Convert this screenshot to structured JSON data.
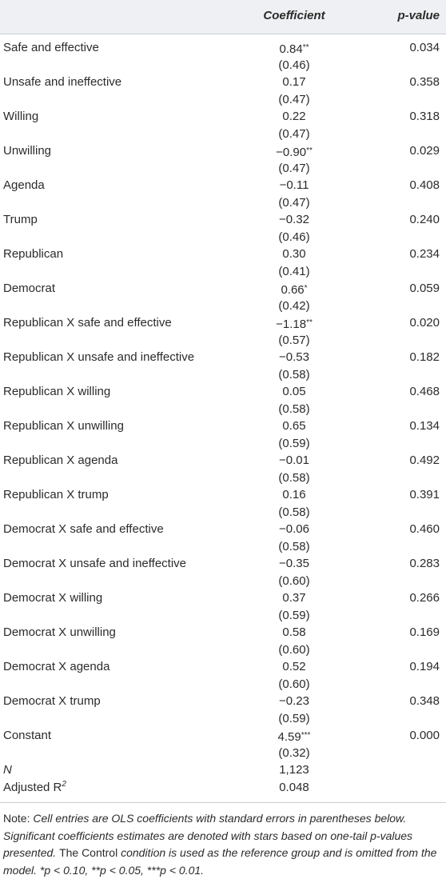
{
  "table": {
    "columns": [
      "Coefficient",
      "p-value"
    ],
    "rows": [
      {
        "label": "Safe and effective",
        "coef": "0.84",
        "stars": "**",
        "se": "(0.46)",
        "p": "0.034"
      },
      {
        "label": "Unsafe and ineffective",
        "coef": "0.17",
        "se": "(0.47)",
        "p": "0.358"
      },
      {
        "label": "Willing",
        "coef": "0.22",
        "se": "(0.47)",
        "p": "0.318"
      },
      {
        "label": "Unwilling",
        "coef": "−0.90",
        "stars": "**",
        "se": "(0.47)",
        "p": "0.029"
      },
      {
        "label": "Agenda",
        "coef": "−0.11",
        "se": "(0.47)",
        "p": "0.408"
      },
      {
        "label": "Trump",
        "coef": "−0.32",
        "se": "(0.46)",
        "p": "0.240"
      },
      {
        "label": "Republican",
        "coef": "0.30",
        "se": "(0.41)",
        "p": "0.234"
      },
      {
        "label": "Democrat",
        "coef": "0.66",
        "stars": "*",
        "se": "(0.42)",
        "p": "0.059"
      },
      {
        "label": "Republican X safe and effective",
        "coef": "−1.18",
        "stars": "**",
        "se": "(0.57)",
        "p": "0.020"
      },
      {
        "label": "Republican X unsafe and ineffective",
        "coef": "−0.53",
        "se": "(0.58)",
        "p": "0.182"
      },
      {
        "label": "Republican X willing",
        "coef": "0.05",
        "se": "(0.58)",
        "p": "0.468"
      },
      {
        "label": "Republican X unwilling",
        "coef": "0.65",
        "se": "(0.59)",
        "p": "0.134"
      },
      {
        "label": "Republican X agenda",
        "coef": "−0.01",
        "se": "(0.58)",
        "p": "0.492"
      },
      {
        "label": "Republican X trump",
        "coef": "0.16",
        "se": "(0.58)",
        "p": "0.391"
      },
      {
        "label": "Democrat X safe and effective",
        "coef": "−0.06",
        "se": "(0.58)",
        "p": "0.460"
      },
      {
        "label": "Democrat X unsafe and ineffective",
        "coef": "−0.35",
        "se": "(0.60)",
        "p": "0.283"
      },
      {
        "label": "Democrat X willing",
        "coef": "0.37",
        "se": "(0.59)",
        "p": "0.266"
      },
      {
        "label": "Democrat X unwilling",
        "coef": "0.58",
        "se": "(0.60)",
        "p": "0.169"
      },
      {
        "label": "Democrat X agenda",
        "coef": "0.52",
        "se": "(0.60)",
        "p": "0.194"
      },
      {
        "label": "Democrat X trump",
        "coef": "−0.23",
        "se": "(0.59)",
        "p": "0.348"
      },
      {
        "label": "Constant",
        "coef": "4.59",
        "stars": "***",
        "se": "(0.32)",
        "p": "0.000"
      },
      {
        "label": "N",
        "coef": "1,123"
      },
      {
        "label": "Adjusted R",
        "label_sup": "2",
        "coef": "0.048"
      }
    ],
    "note": [
      {
        "text": "Note: ",
        "italic": false
      },
      {
        "text": "Cell entries are OLS coefficients with standard errors in parentheses below. Significant coefficients estimates are denoted with stars based on one-tail p-values presented. ",
        "italic": true
      },
      {
        "text": "The Control",
        "italic": false
      },
      {
        "text": " condition is used as the reference group and is omitted from the model. ",
        "italic": true
      },
      {
        "text": "*p < 0.10, **p < 0.05, ***p < 0.01.",
        "italic": true
      }
    ]
  }
}
